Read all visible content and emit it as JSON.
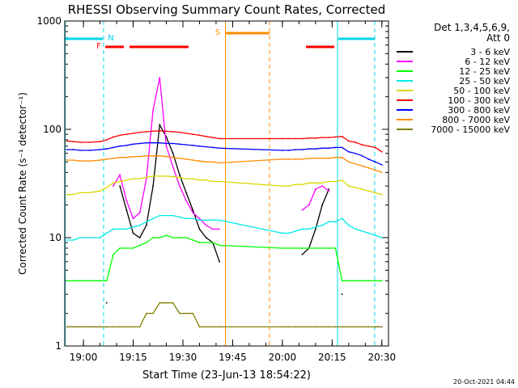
{
  "chart_data": {
    "type": "line",
    "title": "RHESSI Observing Summary Count Rates, Corrected",
    "xlabel": "Start Time (23-Jun-13 18:54:22)",
    "ylabel": "Corrected Count Rate (s⁻¹ detector⁻¹)",
    "y_scale": "log",
    "ylim": [
      1,
      1000
    ],
    "xlim": [
      "18:54:22",
      "20:32:00"
    ],
    "x_ticks": [
      "19:00",
      "19:15",
      "19:30",
      "19:45",
      "20:00",
      "20:15",
      "20:30"
    ],
    "y_ticks": [
      "1",
      "10",
      "100",
      "1000"
    ],
    "legend_header": [
      "Det 1,3,4,5,6,9,",
      "Att 0"
    ],
    "legend_position": "top-right",
    "footer": "20-Oct-2021 04:44",
    "flags": [
      {
        "label": "N",
        "color": "#00d8e8"
      },
      {
        "label": "F",
        "color": "#ff0000"
      },
      {
        "label": "S",
        "color": "#ff8c00"
      }
    ],
    "series": [
      {
        "name": "3 - 6 keV",
        "color": "#000000",
        "x": [
          "18:55",
          "18:57",
          "18:59",
          "19:02",
          "19:05",
          "19:07",
          "19:09",
          "19:11",
          "19:13",
          "19:15",
          "19:17",
          "19:19",
          "19:21",
          "19:23",
          "19:25",
          "19:27",
          "19:29",
          "19:31",
          "19:33",
          "19:35",
          "19:37",
          "19:39",
          "19:41",
          "20:00",
          "20:02",
          "20:04",
          "20:06",
          "20:08",
          "20:10",
          "20:12",
          "20:14",
          "20:16",
          "20:18",
          "20:20",
          "20:22",
          "20:24",
          "20:26",
          "20:28",
          "20:30"
        ],
        "y": [
          null,
          null,
          null,
          null,
          null,
          2.5,
          null,
          30,
          18,
          11,
          10,
          13,
          30,
          110,
          85,
          60,
          38,
          26,
          18,
          12,
          10,
          9,
          6,
          null,
          null,
          null,
          7,
          8,
          12,
          20,
          28,
          null,
          3,
          null,
          null,
          null,
          null,
          null,
          null
        ]
      },
      {
        "name": "6 - 12 keV",
        "color": "#ff00ff",
        "x": [
          "18:55",
          "18:57",
          "18:59",
          "19:02",
          "19:05",
          "19:07",
          "19:09",
          "19:11",
          "19:13",
          "19:15",
          "19:17",
          "19:19",
          "19:21",
          "19:23",
          "19:25",
          "19:27",
          "19:29",
          "19:31",
          "19:33",
          "19:35",
          "19:37",
          "19:39",
          "19:41",
          "20:00",
          "20:02",
          "20:04",
          "20:06",
          "20:08",
          "20:10",
          "20:12",
          "20:14",
          "20:16",
          "20:18",
          "20:20",
          "20:22",
          "20:24",
          "20:26",
          "20:28",
          "20:30"
        ],
        "y": [
          1.5,
          1.5,
          1.5,
          1.5,
          1.5,
          null,
          30,
          38,
          22,
          15,
          17,
          35,
          150,
          300,
          70,
          45,
          30,
          22,
          17,
          15,
          13,
          12,
          12,
          null,
          null,
          null,
          18,
          20,
          28,
          30,
          27,
          null,
          null,
          null,
          null,
          null,
          null,
          1.5,
          1.5
        ]
      },
      {
        "name": "12 - 25 keV",
        "color": "#00ff00",
        "x": [
          "18:55",
          "18:57",
          "18:59",
          "19:02",
          "19:05",
          "19:07",
          "19:09",
          "19:11",
          "19:13",
          "19:15",
          "19:17",
          "19:19",
          "19:21",
          "19:23",
          "19:25",
          "19:27",
          "19:29",
          "19:31",
          "19:33",
          "19:35",
          "19:37",
          "19:39",
          "19:41",
          "20:00",
          "20:02",
          "20:04",
          "20:06",
          "20:08",
          "20:10",
          "20:12",
          "20:14",
          "20:16",
          "20:18",
          "20:20",
          "20:22",
          "20:24",
          "20:26",
          "20:28",
          "20:30"
        ],
        "y": [
          4,
          4,
          4,
          4,
          4,
          4,
          7,
          8,
          8,
          8,
          8.5,
          9,
          10,
          10,
          10.5,
          10,
          10,
          10,
          9.5,
          9,
          9,
          9,
          8.5,
          8,
          8,
          8,
          8,
          8,
          8,
          8,
          8,
          8,
          4,
          4,
          4,
          4,
          4,
          4,
          4
        ]
      },
      {
        "name": "25 - 50 keV",
        "color": "#00e8e8",
        "x": [
          "18:55",
          "18:57",
          "18:59",
          "19:02",
          "19:05",
          "19:07",
          "19:09",
          "19:11",
          "19:13",
          "19:15",
          "19:17",
          "19:19",
          "19:21",
          "19:23",
          "19:25",
          "19:27",
          "19:29",
          "19:31",
          "19:33",
          "19:35",
          "19:37",
          "19:39",
          "19:41",
          "20:00",
          "20:02",
          "20:04",
          "20:06",
          "20:08",
          "20:10",
          "20:12",
          "20:14",
          "20:16",
          "20:18",
          "20:20",
          "20:22",
          "20:24",
          "20:26",
          "20:28",
          "20:30"
        ],
        "y": [
          9.5,
          9.5,
          10,
          10,
          10,
          11,
          12,
          12,
          12,
          12.5,
          13,
          14,
          15,
          16,
          16,
          16,
          15.5,
          15,
          15,
          14.5,
          14.5,
          14.5,
          14.5,
          11,
          11,
          11.5,
          12,
          12,
          12.5,
          13,
          14,
          14,
          15,
          13,
          12,
          11.5,
          11,
          10.5,
          10
        ]
      },
      {
        "name": "50 - 100 keV",
        "color": "#d8d800",
        "x": [
          "18:55",
          "18:57",
          "18:59",
          "19:02",
          "19:05",
          "19:07",
          "19:09",
          "19:11",
          "19:13",
          "19:15",
          "19:17",
          "19:19",
          "19:21",
          "19:23",
          "19:25",
          "19:27",
          "19:29",
          "19:31",
          "19:33",
          "19:35",
          "19:37",
          "19:39",
          "19:41",
          "20:00",
          "20:02",
          "20:04",
          "20:06",
          "20:08",
          "20:10",
          "20:12",
          "20:14",
          "20:16",
          "20:18",
          "20:20",
          "20:22",
          "20:24",
          "20:26",
          "20:28",
          "20:30"
        ],
        "y": [
          25,
          25,
          26,
          26,
          27,
          29,
          32,
          33,
          34,
          35,
          35,
          36,
          37,
          37,
          37,
          36.5,
          36,
          35,
          35,
          34,
          34,
          33,
          33,
          30,
          30,
          31,
          31,
          32,
          32,
          32,
          33,
          33,
          34,
          30,
          29,
          28,
          27,
          26,
          25
        ]
      },
      {
        "name": "100 - 300 keV",
        "color": "#ff0000",
        "x": [
          "18:55",
          "18:57",
          "18:59",
          "19:02",
          "19:05",
          "19:07",
          "19:09",
          "19:11",
          "19:13",
          "19:15",
          "19:17",
          "19:19",
          "19:21",
          "19:23",
          "19:25",
          "19:27",
          "19:29",
          "19:31",
          "19:33",
          "19:35",
          "19:37",
          "19:39",
          "19:41",
          "20:00",
          "20:02",
          "20:04",
          "20:06",
          "20:08",
          "20:10",
          "20:12",
          "20:14",
          "20:16",
          "20:18",
          "20:20",
          "20:22",
          "20:24",
          "20:26",
          "20:28",
          "20:30"
        ],
        "y": [
          78,
          77,
          76,
          76,
          77,
          80,
          85,
          88,
          90,
          92,
          94,
          95,
          96,
          97,
          96,
          95,
          94,
          92,
          90,
          88,
          86,
          84,
          82,
          82,
          82,
          82,
          82,
          83,
          83,
          84,
          84,
          85,
          86,
          78,
          76,
          72,
          70,
          68,
          62
        ]
      },
      {
        "name": "300 - 800 keV",
        "color": "#0000ff",
        "x": [
          "18:55",
          "18:57",
          "18:59",
          "19:02",
          "19:05",
          "19:07",
          "19:09",
          "19:11",
          "19:13",
          "19:15",
          "19:17",
          "19:19",
          "19:21",
          "19:23",
          "19:25",
          "19:27",
          "19:29",
          "19:31",
          "19:33",
          "19:35",
          "19:37",
          "19:39",
          "19:41",
          "20:00",
          "20:02",
          "20:04",
          "20:06",
          "20:08",
          "20:10",
          "20:12",
          "20:14",
          "20:16",
          "20:18",
          "20:20",
          "20:22",
          "20:24",
          "20:26",
          "20:28",
          "20:30"
        ],
        "y": [
          65,
          65,
          64,
          64,
          65,
          66,
          68,
          70,
          71,
          73,
          74,
          75,
          75,
          75,
          74,
          74,
          73,
          72,
          71,
          70,
          69,
          68,
          67,
          64,
          64,
          65,
          65,
          66,
          66,
          67,
          67,
          68,
          68,
          62,
          60,
          57,
          53,
          50,
          47
        ]
      },
      {
        "name": "800 - 7000 keV",
        "color": "#ff8c00",
        "x": [
          "18:55",
          "18:57",
          "18:59",
          "19:02",
          "19:05",
          "19:07",
          "19:09",
          "19:11",
          "19:13",
          "19:15",
          "19:17",
          "19:19",
          "19:21",
          "19:23",
          "19:25",
          "19:27",
          "19:29",
          "19:31",
          "19:33",
          "19:35",
          "19:37",
          "19:39",
          "19:41",
          "20:00",
          "20:02",
          "20:04",
          "20:06",
          "20:08",
          "20:10",
          "20:12",
          "20:14",
          "20:16",
          "20:18",
          "20:20",
          "20:22",
          "20:24",
          "20:26",
          "20:28",
          "20:30"
        ],
        "y": [
          52,
          52,
          51,
          51,
          52,
          53,
          54,
          55,
          55,
          56,
          56,
          57,
          57,
          57,
          56,
          55,
          54,
          53,
          52,
          51,
          50,
          50,
          49,
          53,
          53,
          53,
          53,
          54,
          54,
          54,
          54,
          55,
          55,
          50,
          48,
          46,
          44,
          42,
          40
        ]
      },
      {
        "name": "7000 - 15000 keV",
        "color": "#808000",
        "x": [
          "18:55",
          "18:57",
          "18:59",
          "19:02",
          "19:05",
          "19:07",
          "19:09",
          "19:11",
          "19:13",
          "19:15",
          "19:17",
          "19:19",
          "19:21",
          "19:23",
          "19:25",
          "19:27",
          "19:29",
          "19:31",
          "19:33",
          "19:35",
          "19:37",
          "19:39",
          "19:41",
          "20:00",
          "20:02",
          "20:04",
          "20:06",
          "20:08",
          "20:10",
          "20:12",
          "20:14",
          "20:16",
          "20:18",
          "20:20",
          "20:22",
          "20:24",
          "20:26",
          "20:28",
          "20:30"
        ],
        "y": [
          1.5,
          1.5,
          1.5,
          1.5,
          1.5,
          1.5,
          1.5,
          1.5,
          1.5,
          1.5,
          1.5,
          2,
          2,
          2.5,
          2.5,
          2.5,
          2,
          2,
          2,
          1.5,
          1.5,
          1.5,
          1.5,
          1.5,
          1.5,
          1.5,
          1.5,
          1.5,
          1.5,
          1.5,
          1.5,
          1.5,
          1.5,
          1.5,
          1.5,
          1.5,
          1.5,
          1.5,
          1.5
        ]
      }
    ]
  }
}
